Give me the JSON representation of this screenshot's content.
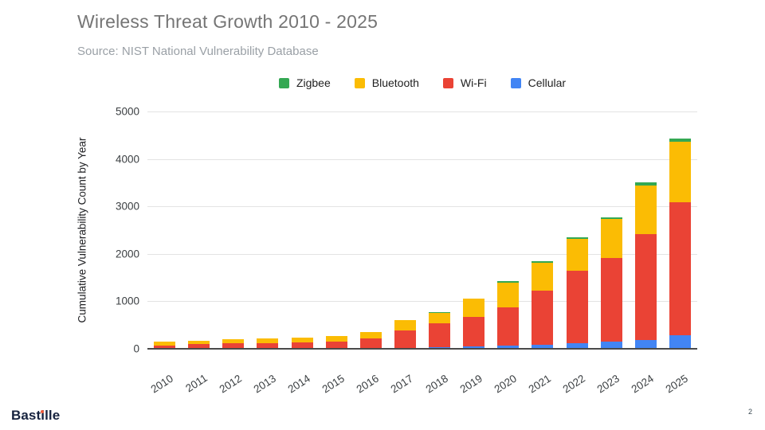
{
  "header": {
    "title": "Wireless Threat Growth 2010 - 2025",
    "subtitle": "Source: NIST National Vulnerability Database"
  },
  "footer": {
    "logo_text": "Bastille",
    "logo_color": "#17233f",
    "logo_dot_color": "#f05b3c",
    "page_number": "2"
  },
  "chart_data": {
    "type": "bar",
    "stacked": true,
    "title": "Wireless Threat Growth 2010 - 2025",
    "xlabel": "",
    "ylabel": "Cumulative Vulnerability Count by Year",
    "ylim": [
      0,
      5000
    ],
    "ytick_interval": 1000,
    "grid": true,
    "legend_position": "top",
    "legend_order": [
      "Zigbee",
      "Bluetooth",
      "Wi-Fi",
      "Cellular"
    ],
    "categories": [
      "2010",
      "2011",
      "2012",
      "2013",
      "2014",
      "2015",
      "2016",
      "2017",
      "2018",
      "2019",
      "2020",
      "2021",
      "2022",
      "2023",
      "2024",
      "2025"
    ],
    "series": [
      {
        "name": "Cellular",
        "color": "#4285f4",
        "values": [
          0,
          0,
          0,
          0,
          0,
          0,
          0,
          20,
          40,
          55,
          75,
          85,
          115,
          150,
          185,
          280
        ]
      },
      {
        "name": "Wi-Fi",
        "color": "#ea4335",
        "values": [
          70,
          95,
          110,
          120,
          130,
          150,
          210,
          370,
          490,
          610,
          805,
          1145,
          1535,
          1765,
          2225,
          2800
        ]
      },
      {
        "name": "Bluetooth",
        "color": "#fbbc04",
        "values": [
          80,
          80,
          85,
          95,
          105,
          115,
          140,
          210,
          230,
          385,
          505,
          575,
          660,
          820,
          1025,
          1280
        ]
      },
      {
        "name": "Zigbee",
        "color": "#34a853",
        "values": [
          0,
          0,
          0,
          0,
          0,
          0,
          0,
          0,
          20,
          0,
          35,
          35,
          40,
          40,
          65,
          70
        ]
      }
    ],
    "totals": [
      150,
      175,
      195,
      215,
      235,
      265,
      350,
      600,
      780,
      1050,
      1420,
      1840,
      2350,
      2775,
      3500,
      4430
    ]
  }
}
